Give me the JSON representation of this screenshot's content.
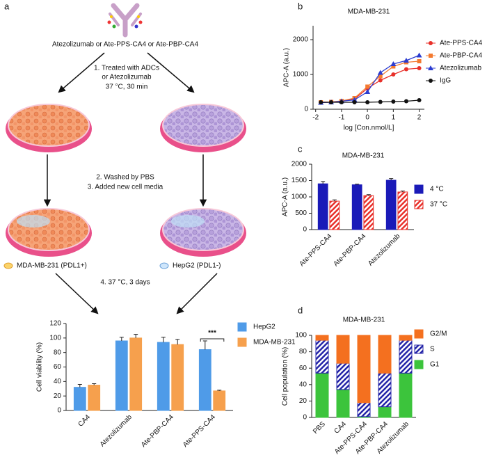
{
  "panel_labels": [
    "a",
    "b",
    "c",
    "d"
  ],
  "panel_a": {
    "compounds": "Atezolizumab or Ate-PPS-CA4 or Ate-PBP-CA4",
    "step1": [
      "1. Treated with ADCs",
      "or Atezolizumab",
      "37 °C, 30 min"
    ],
    "step2": [
      "2. Washed by PBS",
      "3. Added new cell media"
    ],
    "cell_left": "MDA-MB-231 (PDL1+)",
    "cell_right": "HepG2 (PDL1-)",
    "step4": "4. 37 °C, 3 days"
  },
  "chart_data": [
    {
      "type": "bar",
      "ylabel": "Cell viability (%)",
      "categories": [
        "CA4",
        "Atezolizumab",
        "Ate-PBP-CA4",
        "Ate-PPS-CA4"
      ],
      "series": [
        {
          "name": "HepG2",
          "color": "#4f9be8",
          "values": [
            32,
            96,
            94,
            84
          ],
          "errors": [
            4,
            5,
            7,
            12
          ]
        },
        {
          "name": "MDA-MB-231",
          "color": "#f6a04d",
          "values": [
            35,
            100,
            91,
            27
          ],
          "errors": [
            2,
            5,
            7,
            1
          ]
        }
      ],
      "ylim": [
        0,
        120
      ],
      "yticks": [
        0,
        20,
        40,
        60,
        80,
        100,
        120
      ],
      "annotation": "***",
      "rotate_labels": true
    },
    {
      "type": "line",
      "title": "MDA-MB-231",
      "ylabel": "APC-A (a.u.)",
      "xlabel": "log [Con.nmol/L]",
      "x": [
        -1.8,
        -1.4,
        -1,
        -0.5,
        0,
        0.5,
        1,
        1.5,
        2
      ],
      "series": [
        {
          "name": "Ate-PPS-CA4",
          "color": "#e8302a",
          "marker": "circle",
          "values": [
            200,
            210,
            230,
            290,
            600,
            830,
            1000,
            1150,
            1180
          ]
        },
        {
          "name": "Ate-PBP-CA4",
          "color": "#f47a30",
          "marker": "square",
          "values": [
            200,
            210,
            240,
            320,
            650,
            950,
            1230,
            1350,
            1380
          ]
        },
        {
          "name": "Atezolizumab",
          "color": "#2b3cd0",
          "marker": "triangle",
          "values": [
            190,
            200,
            230,
            270,
            500,
            1050,
            1300,
            1400,
            1550
          ]
        },
        {
          "name": "IgG",
          "color": "#111111",
          "marker": "circle",
          "values": [
            200,
            200,
            200,
            200,
            200,
            210,
            220,
            230,
            260
          ]
        }
      ],
      "xlim": [
        -2.1,
        2.2
      ],
      "xticks": [
        -2,
        -1,
        0,
        1,
        2
      ],
      "ylim": [
        0,
        2400
      ],
      "yticks": [
        0,
        1000,
        2000
      ]
    },
    {
      "type": "bar",
      "title": "MDA-MB-231",
      "ylabel": "APC-A (a.u.)",
      "categories": [
        "Ate-PPS-CA4",
        "Ate-PBP-CA4",
        "Atezolizumab"
      ],
      "series": [
        {
          "name": "4 °C",
          "color": "#1a1ab8",
          "values": [
            1400,
            1370,
            1510
          ],
          "errors": [
            70,
            20,
            50
          ]
        },
        {
          "name": "37 °C",
          "color": "#e8302a",
          "pattern": "hatched",
          "values": [
            870,
            1040,
            1150
          ],
          "errors": [
            40,
            30,
            30
          ]
        }
      ],
      "ylim": [
        0,
        2000
      ],
      "yticks": [
        0,
        500,
        1000,
        1500,
        2000
      ],
      "rotate_labels": true
    },
    {
      "type": "stacked_bar",
      "title": "MDA-MB-231",
      "ylabel": "Cell population (%)",
      "categories": [
        "PBS",
        "CA4",
        "Ate-PPS-CA4",
        "Ate-PBP-CA4",
        "Atezolizumab"
      ],
      "series": [
        {
          "name": "G1",
          "color": "#3cc43c",
          "values": [
            54,
            34,
            1,
            13,
            54
          ]
        },
        {
          "name": "S",
          "color": "#2424a8",
          "pattern": "hatched",
          "values": [
            40,
            32,
            17,
            41,
            40
          ]
        },
        {
          "name": "G2/M",
          "color": "#f4701f",
          "values": [
            6,
            34,
            82,
            46,
            6
          ]
        }
      ],
      "ylim": [
        0,
        100
      ],
      "yticks": [
        0,
        20,
        40,
        60,
        80,
        100
      ],
      "rotate_labels": true
    }
  ]
}
